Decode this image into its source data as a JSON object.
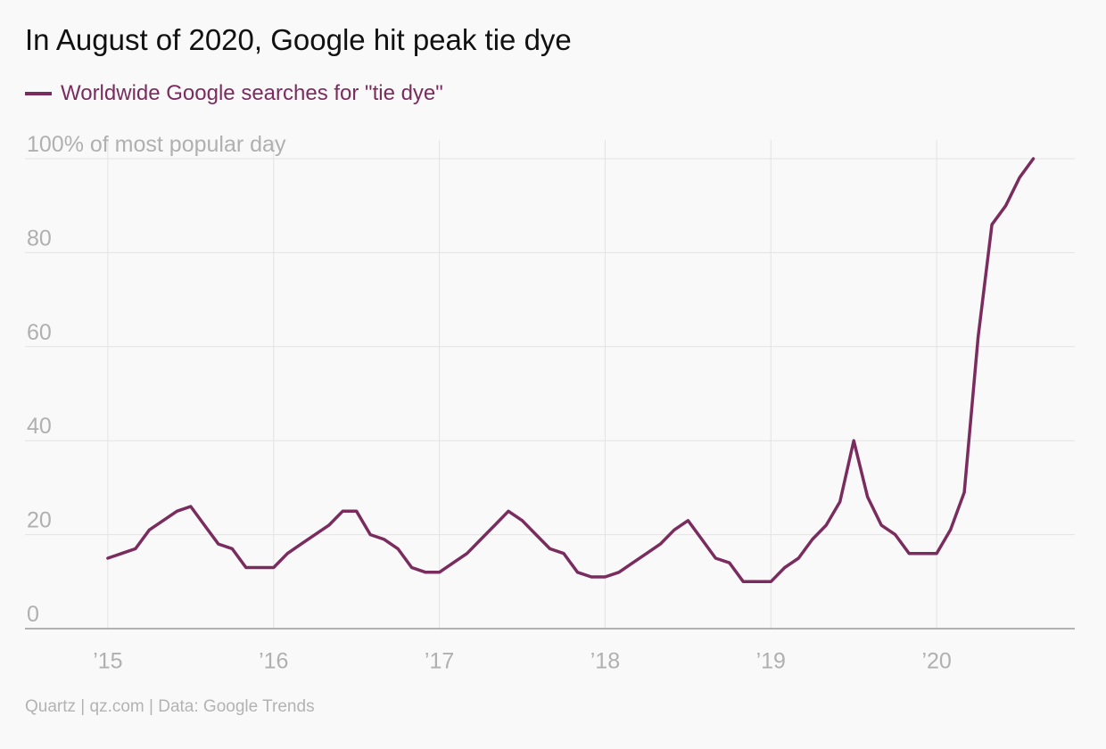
{
  "title": "In August of 2020, Google hit peak tie dye",
  "legend": {
    "label": "Worldwide Google searches for \"tie dye\""
  },
  "footer": "Quartz | qz.com | Data: Google Trends",
  "colors": {
    "series": "#7a2c5e",
    "grid": "#e3e3e3",
    "axis": "#9a9a9a",
    "tick_text": "#b0b0b0",
    "background": "#f9f9f9"
  },
  "chart_data": {
    "type": "line",
    "title": "In August of 2020, Google hit peak tie dye",
    "ylabel": "100% of most popular day",
    "xlabel": "",
    "ylim": [
      0,
      100
    ],
    "xlim": [
      "2014-07",
      "2020-11"
    ],
    "y_ticks": [
      0,
      20,
      40,
      60,
      80,
      100
    ],
    "y_tick_labels": [
      "0",
      "20",
      "40",
      "60",
      "80",
      "100% of most popular day"
    ],
    "x_ticks": [
      "2015-01",
      "2016-01",
      "2017-01",
      "2018-01",
      "2019-01",
      "2020-01"
    ],
    "x_tick_labels": [
      "’15",
      "’16",
      "’17",
      "’18",
      "’19",
      "’20"
    ],
    "grid": true,
    "legend_position": "top-left",
    "series": [
      {
        "name": "Worldwide Google searches for \"tie dye\"",
        "color": "#7a2c5e",
        "x": [
          "2015-01",
          "2015-02",
          "2015-03",
          "2015-04",
          "2015-05",
          "2015-06",
          "2015-07",
          "2015-08",
          "2015-09",
          "2015-10",
          "2015-11",
          "2015-12",
          "2016-01",
          "2016-02",
          "2016-03",
          "2016-04",
          "2016-05",
          "2016-06",
          "2016-07",
          "2016-08",
          "2016-09",
          "2016-10",
          "2016-11",
          "2016-12",
          "2017-01",
          "2017-02",
          "2017-03",
          "2017-04",
          "2017-05",
          "2017-06",
          "2017-07",
          "2017-08",
          "2017-09",
          "2017-10",
          "2017-11",
          "2017-12",
          "2018-01",
          "2018-02",
          "2018-03",
          "2018-04",
          "2018-05",
          "2018-06",
          "2018-07",
          "2018-08",
          "2018-09",
          "2018-10",
          "2018-11",
          "2018-12",
          "2019-01",
          "2019-02",
          "2019-03",
          "2019-04",
          "2019-05",
          "2019-06",
          "2019-07",
          "2019-08",
          "2019-09",
          "2019-10",
          "2019-11",
          "2019-12",
          "2020-01",
          "2020-02",
          "2020-03",
          "2020-04",
          "2020-05",
          "2020-06",
          "2020-07",
          "2020-08"
        ],
        "values": [
          15,
          16,
          17,
          21,
          23,
          25,
          26,
          22,
          18,
          17,
          13,
          13,
          13,
          16,
          18,
          20,
          22,
          25,
          25,
          20,
          19,
          17,
          13,
          12,
          12,
          14,
          16,
          19,
          22,
          25,
          23,
          20,
          17,
          16,
          12,
          11,
          11,
          12,
          14,
          16,
          18,
          21,
          23,
          19,
          15,
          14,
          10,
          10,
          10,
          13,
          15,
          19,
          22,
          27,
          40,
          28,
          22,
          20,
          16,
          16,
          16,
          21,
          29,
          62,
          86,
          90,
          96,
          100
        ]
      }
    ]
  }
}
